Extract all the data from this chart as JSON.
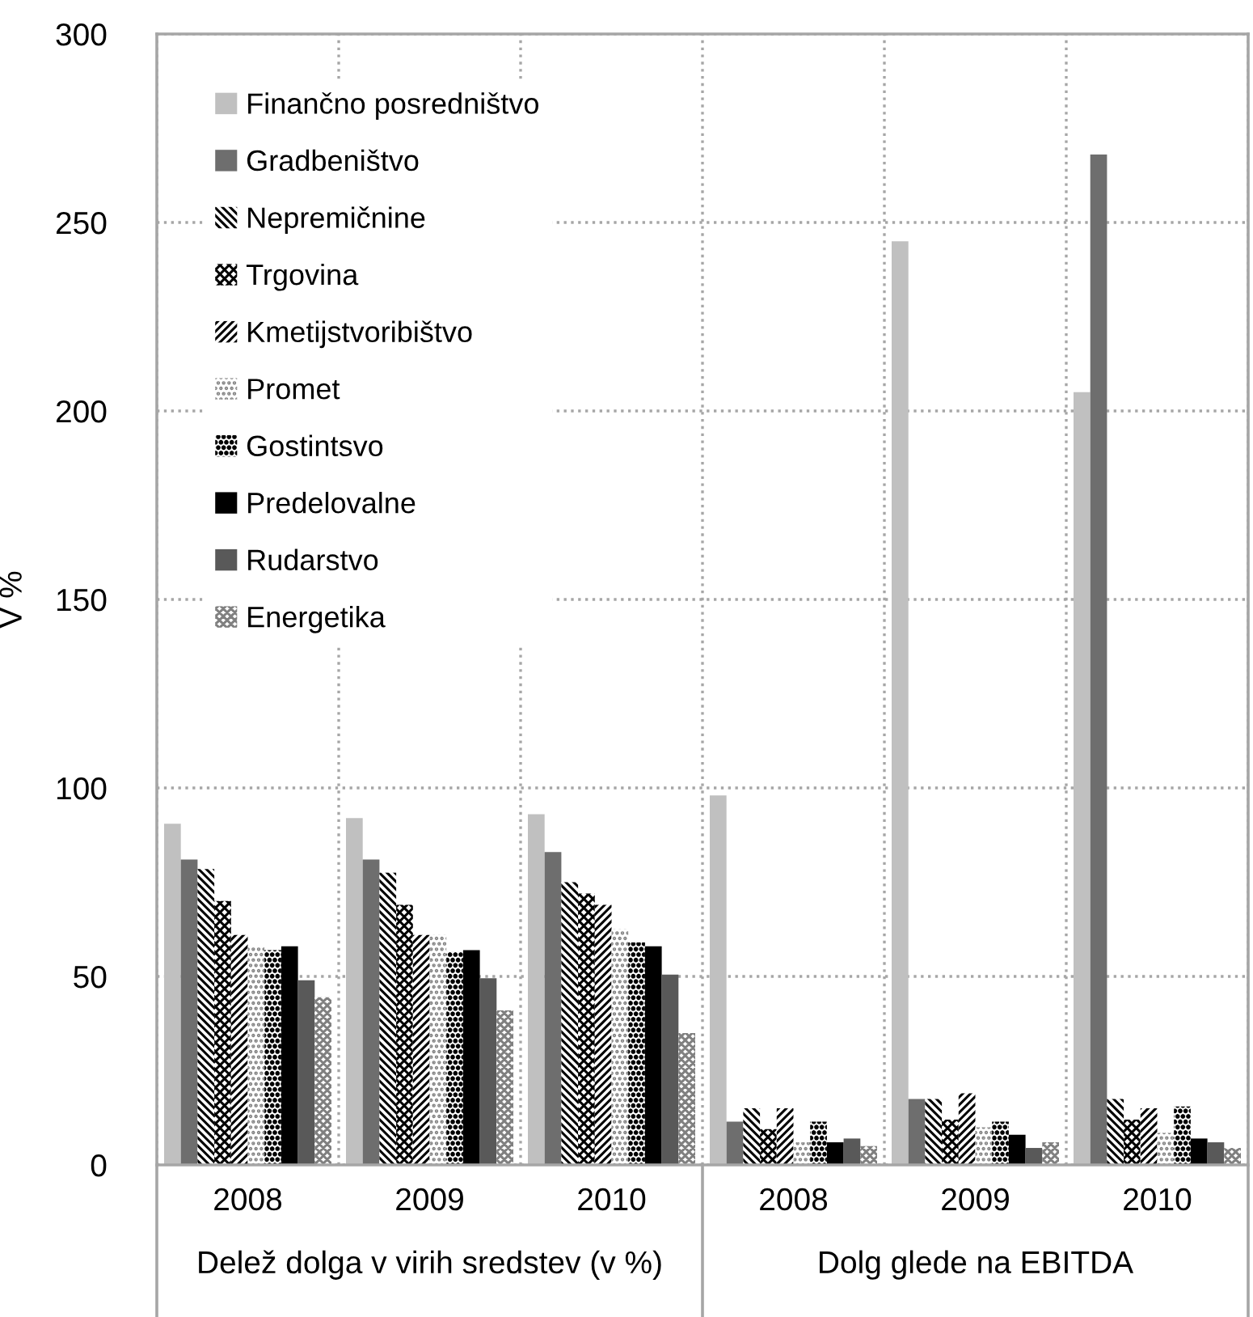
{
  "chart_data": {
    "type": "bar",
    "categories": [
      "2008",
      "2009",
      "2010",
      "2008",
      "2009",
      "2010"
    ],
    "annotations": [
      "Delež dolga v virih sredstev (v %)",
      "Dolg glede na EBITDA"
    ],
    "ylabel": "V %",
    "ylim": [
      0,
      300
    ],
    "yticks": [
      0,
      50,
      100,
      150,
      200,
      250,
      300
    ],
    "grid": true,
    "legend": "top left",
    "series": [
      {
        "name": "Finančno posredništvo",
        "color": "#c0c0c0",
        "values": [
          90.5,
          92,
          93,
          98,
          245,
          205
        ]
      },
      {
        "name": "Gradbeništvo",
        "color": "#6e6e6e",
        "values": [
          81,
          81,
          83,
          11.5,
          17.5,
          268
        ]
      },
      {
        "name": "Nepremičnine",
        "color": "#000000",
        "values": [
          78.5,
          77.5,
          75,
          15,
          17.5,
          17.5
        ]
      },
      {
        "name": "Trgovina",
        "color": "#000000",
        "values": [
          70,
          69,
          72,
          9.5,
          12,
          12
        ]
      },
      {
        "name": "Kmetijstvoribištvo",
        "color": "#000000",
        "values": [
          61,
          61,
          69,
          15,
          19,
          15
        ]
      },
      {
        "name": "Promet",
        "color": "#808080",
        "values": [
          58,
          61,
          62.5,
          6,
          10,
          8.5
        ]
      },
      {
        "name": "Gostintsvo",
        "color": "#000000",
        "values": [
          57,
          56.5,
          59,
          11.5,
          11.5,
          15.5
        ]
      },
      {
        "name": "Predelovalne",
        "color": "#000000",
        "values": [
          58,
          57,
          58,
          6,
          8,
          7
        ]
      },
      {
        "name": "Rudarstvo",
        "color": "#595959",
        "values": [
          49,
          49.5,
          50.5,
          7,
          4.5,
          6
        ]
      },
      {
        "name": "Energetika",
        "color": "#808080",
        "values": [
          44.5,
          41,
          35,
          5,
          6,
          4.5
        ]
      }
    ]
  }
}
